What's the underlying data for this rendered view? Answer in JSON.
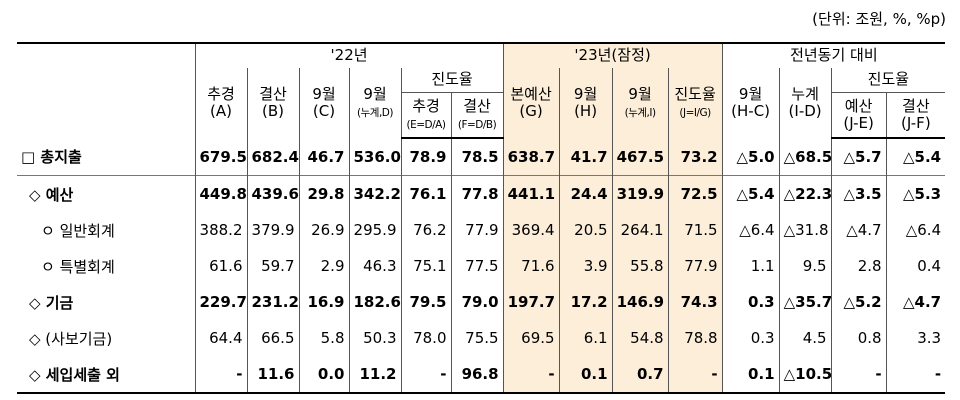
{
  "unit_note": "(단위: 조원, %, %p)",
  "header": {
    "group_22": "'22년",
    "group_23": "'23년(잠정)",
    "group_yoy": "전년동기 대비",
    "progress_22": "진도율",
    "progress_yoy": "진도율",
    "col_22_a": "추경",
    "col_22_a_sub": "(A)",
    "col_22_b": "결산",
    "col_22_b_sub": "(B)",
    "col_22_c": "9월",
    "col_22_c_sub": "(C)",
    "col_22_d": "9월",
    "col_22_d_sub": "(누계,D)",
    "col_22_e": "추경",
    "col_22_e_sub": "(E=D/A)",
    "col_22_f": "결산",
    "col_22_f_sub": "(F=D/B)",
    "col_23_g": "본예산",
    "col_23_g_sub": "(G)",
    "col_23_h": "9월",
    "col_23_h_sub": "(H)",
    "col_23_i": "9월",
    "col_23_i_sub": "(누계,I)",
    "col_23_j": "진도율",
    "col_23_j_sub": "(J=I/G)",
    "col_y_1": "9월",
    "col_y_1_sub": "(H-C)",
    "col_y_2": "누계",
    "col_y_2_sub": "(I-D)",
    "col_y_3": "예산",
    "col_y_3_sub": "(J-E)",
    "col_y_4": "결산",
    "col_y_4_sub": "(J-F)"
  },
  "rows": [
    {
      "label": "□ 총지출",
      "v": [
        "679.5",
        "682.4",
        "46.7",
        "536.0",
        "78.9",
        "78.5",
        "638.7",
        "41.7",
        "467.5",
        "73.2",
        "△5.0",
        "△68.5",
        "△5.7",
        "△5.4"
      ]
    },
    {
      "label": "◇ 예산",
      "v": [
        "449.8",
        "439.6",
        "29.8",
        "342.2",
        "76.1",
        "77.8",
        "441.1",
        "24.4",
        "319.9",
        "72.5",
        "△5.4",
        "△22.3",
        "△3.5",
        "△5.3"
      ]
    },
    {
      "label": "ㅇ 일반회계",
      "v": [
        "388.2",
        "379.9",
        "26.9",
        "295.9",
        "76.2",
        "77.9",
        "369.4",
        "20.5",
        "264.1",
        "71.5",
        "△6.4",
        "△31.8",
        "△4.7",
        "△6.4"
      ]
    },
    {
      "label": "ㅇ 특별회계",
      "v": [
        "61.6",
        "59.7",
        "2.9",
        "46.3",
        "75.1",
        "77.5",
        "71.6",
        "3.9",
        "55.8",
        "77.9",
        "1.1",
        "9.5",
        "2.8",
        "0.4"
      ]
    },
    {
      "label": "◇ 기금",
      "v": [
        "229.7",
        "231.2",
        "16.9",
        "182.6",
        "79.5",
        "79.0",
        "197.7",
        "17.2",
        "146.9",
        "74.3",
        "0.3",
        "△35.7",
        "△5.2",
        "△4.7"
      ]
    },
    {
      "label": "◇ (사보기금)",
      "v": [
        "64.4",
        "66.5",
        "5.8",
        "50.3",
        "78.0",
        "75.5",
        "69.5",
        "6.1",
        "54.8",
        "78.8",
        "0.3",
        "4.5",
        "0.8",
        "3.3"
      ]
    },
    {
      "label": "◇ 세입세출 외",
      "v": [
        "-",
        "11.6",
        "0.0",
        "11.2",
        "-",
        "96.8",
        "-",
        "0.1",
        "0.7",
        "-",
        "0.1",
        "△10.5",
        "-",
        "-"
      ]
    }
  ]
}
